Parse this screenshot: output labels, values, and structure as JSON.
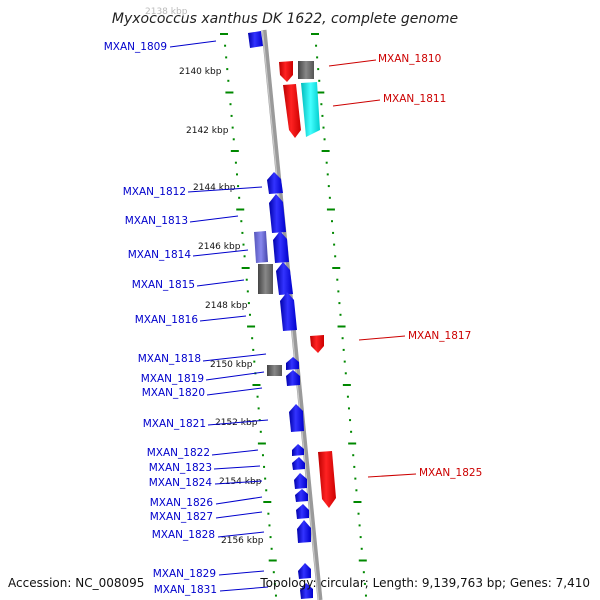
{
  "title": "Myxococcus xanthus DK 1622, complete genome",
  "ruler": {
    "top_faint": "2138 kbp",
    "labels": [
      "2140 kbp",
      "2142 kbp",
      "2144 kbp",
      "2146 kbp",
      "2148 kbp",
      "2150 kbp",
      "2152 kbp",
      "2154 kbp",
      "2156 kbp"
    ]
  },
  "genes_left": [
    "MXAN_1809",
    "MXAN_1812",
    "MXAN_1813",
    "MXAN_1814",
    "MXAN_1815",
    "MXAN_1816",
    "MXAN_1818",
    "MXAN_1819",
    "MXAN_1820",
    "MXAN_1821",
    "MXAN_1822",
    "MXAN_1823",
    "MXAN_1824",
    "MXAN_1826",
    "MXAN_1827",
    "MXAN_1828",
    "MXAN_1829",
    "MXAN_1831"
  ],
  "genes_right": [
    "MXAN_1810",
    "MXAN_1811",
    "MXAN_1817",
    "MXAN_1825"
  ],
  "footer": {
    "accession": "Accession: NC_008095",
    "summary": "Topology: circular; Length: 9,139,763 bp; Genes: 7,410"
  },
  "colors": {
    "forward": "#0000ff",
    "reverse": "#ff0000",
    "cds_gray": "#666666",
    "cds_cyan": "#00e5e5",
    "cds_purple": "#6666cc",
    "backbone": "#888888",
    "ticks": "#008800",
    "left_label": "#0000cc",
    "right_label": "#cc0000"
  }
}
